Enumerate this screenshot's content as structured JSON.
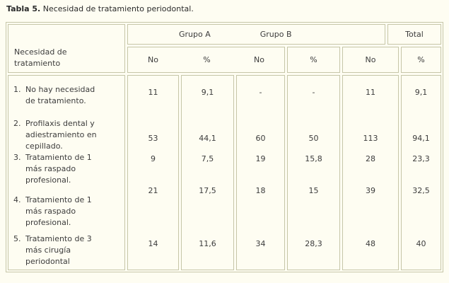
{
  "title": {
    "label": "Tabla 5.",
    "text": " Necesidad de tratamiento periodontal."
  },
  "table": {
    "row_header": "Necesidad de\ntratamiento",
    "groups": {
      "a": "Grupo A",
      "b": "Grupo B",
      "total": "Total"
    },
    "sub_headers": {
      "c1": "No",
      "c2": "%",
      "c3": "No",
      "c4": "%",
      "c5": "No",
      "c6": "%"
    },
    "rows": [
      {
        "num": "1.",
        "label": "No hay necesidad\nde tratamiento.",
        "values": {
          "c1": "11",
          "c2": "9,1",
          "c3": "-",
          "c4": "-",
          "c5": "11",
          "c6": "9,1"
        }
      },
      {
        "num": "2.",
        "label": "Profilaxis dental y\nadiestramiento en\ncepillado.",
        "values": {
          "c1": "53",
          "c2": "44,1",
          "c3": "60",
          "c4": "50",
          "c5": "113",
          "c6": "94,1"
        }
      },
      {
        "num": "3.",
        "label": "Tratamiento de 1\nmás raspado\nprofesional.",
        "values": {
          "c1": "9",
          "c2": "7,5",
          "c3": "19",
          "c4": "15,8",
          "c5": "28",
          "c6": "23,3"
        }
      },
      {
        "num": "4.",
        "label": "Tratamiento de 1\nmás raspado\nprofesional.",
        "values": {
          "c1": "21",
          "c2": "17,5",
          "c3": "18",
          "c4": "15",
          "c5": "39",
          "c6": "32,5"
        }
      },
      {
        "num": "5.",
        "label": "Tratamiento de 3\nmás cirugía\nperiodontal",
        "values": {
          "c1": "14",
          "c2": "11,6",
          "c3": "34",
          "c4": "28,3",
          "c5": "48",
          "c6": "40"
        }
      }
    ],
    "colors": {
      "border": "#c6c6a8",
      "background": "#fefdf2",
      "text": "#3c3c3c"
    }
  }
}
